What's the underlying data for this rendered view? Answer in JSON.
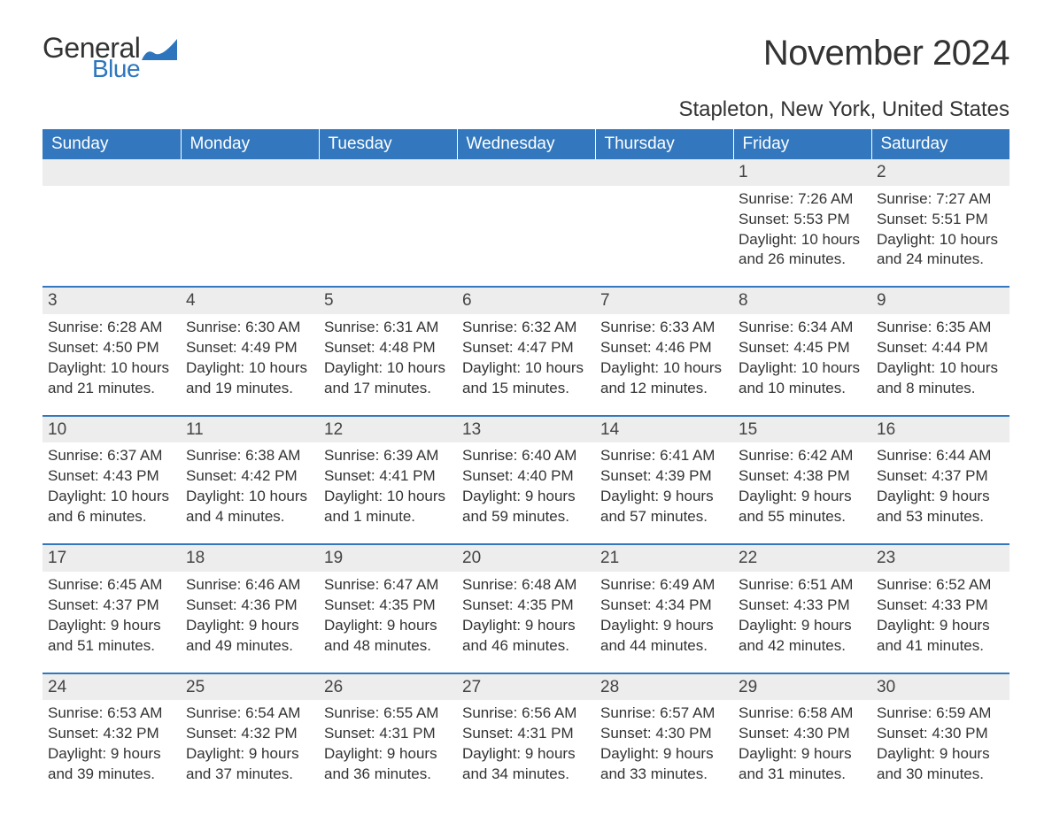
{
  "logo": {
    "word1": "General",
    "word2": "Blue",
    "color_blue": "#2d76bd",
    "color_dark": "#333333"
  },
  "title": "November 2024",
  "location": "Stapleton, New York, United States",
  "header_bg": "#3378be",
  "header_text_color": "#ffffff",
  "daynum_bg": "#ededed",
  "daynum_border": "#3378be",
  "text_color": "#333333",
  "font_family": "Arial, Helvetica, sans-serif",
  "columns": [
    "Sunday",
    "Monday",
    "Tuesday",
    "Wednesday",
    "Thursday",
    "Friday",
    "Saturday"
  ],
  "weeks": [
    [
      null,
      null,
      null,
      null,
      null,
      {
        "n": "1",
        "sunrise": "Sunrise: 7:26 AM",
        "sunset": "Sunset: 5:53 PM",
        "day1": "Daylight: 10 hours",
        "day2": "and 26 minutes."
      },
      {
        "n": "2",
        "sunrise": "Sunrise: 7:27 AM",
        "sunset": "Sunset: 5:51 PM",
        "day1": "Daylight: 10 hours",
        "day2": "and 24 minutes."
      }
    ],
    [
      {
        "n": "3",
        "sunrise": "Sunrise: 6:28 AM",
        "sunset": "Sunset: 4:50 PM",
        "day1": "Daylight: 10 hours",
        "day2": "and 21 minutes."
      },
      {
        "n": "4",
        "sunrise": "Sunrise: 6:30 AM",
        "sunset": "Sunset: 4:49 PM",
        "day1": "Daylight: 10 hours",
        "day2": "and 19 minutes."
      },
      {
        "n": "5",
        "sunrise": "Sunrise: 6:31 AM",
        "sunset": "Sunset: 4:48 PM",
        "day1": "Daylight: 10 hours",
        "day2": "and 17 minutes."
      },
      {
        "n": "6",
        "sunrise": "Sunrise: 6:32 AM",
        "sunset": "Sunset: 4:47 PM",
        "day1": "Daylight: 10 hours",
        "day2": "and 15 minutes."
      },
      {
        "n": "7",
        "sunrise": "Sunrise: 6:33 AM",
        "sunset": "Sunset: 4:46 PM",
        "day1": "Daylight: 10 hours",
        "day2": "and 12 minutes."
      },
      {
        "n": "8",
        "sunrise": "Sunrise: 6:34 AM",
        "sunset": "Sunset: 4:45 PM",
        "day1": "Daylight: 10 hours",
        "day2": "and 10 minutes."
      },
      {
        "n": "9",
        "sunrise": "Sunrise: 6:35 AM",
        "sunset": "Sunset: 4:44 PM",
        "day1": "Daylight: 10 hours",
        "day2": "and 8 minutes."
      }
    ],
    [
      {
        "n": "10",
        "sunrise": "Sunrise: 6:37 AM",
        "sunset": "Sunset: 4:43 PM",
        "day1": "Daylight: 10 hours",
        "day2": "and 6 minutes."
      },
      {
        "n": "11",
        "sunrise": "Sunrise: 6:38 AM",
        "sunset": "Sunset: 4:42 PM",
        "day1": "Daylight: 10 hours",
        "day2": "and 4 minutes."
      },
      {
        "n": "12",
        "sunrise": "Sunrise: 6:39 AM",
        "sunset": "Sunset: 4:41 PM",
        "day1": "Daylight: 10 hours",
        "day2": "and 1 minute."
      },
      {
        "n": "13",
        "sunrise": "Sunrise: 6:40 AM",
        "sunset": "Sunset: 4:40 PM",
        "day1": "Daylight: 9 hours",
        "day2": "and 59 minutes."
      },
      {
        "n": "14",
        "sunrise": "Sunrise: 6:41 AM",
        "sunset": "Sunset: 4:39 PM",
        "day1": "Daylight: 9 hours",
        "day2": "and 57 minutes."
      },
      {
        "n": "15",
        "sunrise": "Sunrise: 6:42 AM",
        "sunset": "Sunset: 4:38 PM",
        "day1": "Daylight: 9 hours",
        "day2": "and 55 minutes."
      },
      {
        "n": "16",
        "sunrise": "Sunrise: 6:44 AM",
        "sunset": "Sunset: 4:37 PM",
        "day1": "Daylight: 9 hours",
        "day2": "and 53 minutes."
      }
    ],
    [
      {
        "n": "17",
        "sunrise": "Sunrise: 6:45 AM",
        "sunset": "Sunset: 4:37 PM",
        "day1": "Daylight: 9 hours",
        "day2": "and 51 minutes."
      },
      {
        "n": "18",
        "sunrise": "Sunrise: 6:46 AM",
        "sunset": "Sunset: 4:36 PM",
        "day1": "Daylight: 9 hours",
        "day2": "and 49 minutes."
      },
      {
        "n": "19",
        "sunrise": "Sunrise: 6:47 AM",
        "sunset": "Sunset: 4:35 PM",
        "day1": "Daylight: 9 hours",
        "day2": "and 48 minutes."
      },
      {
        "n": "20",
        "sunrise": "Sunrise: 6:48 AM",
        "sunset": "Sunset: 4:35 PM",
        "day1": "Daylight: 9 hours",
        "day2": "and 46 minutes."
      },
      {
        "n": "21",
        "sunrise": "Sunrise: 6:49 AM",
        "sunset": "Sunset: 4:34 PM",
        "day1": "Daylight: 9 hours",
        "day2": "and 44 minutes."
      },
      {
        "n": "22",
        "sunrise": "Sunrise: 6:51 AM",
        "sunset": "Sunset: 4:33 PM",
        "day1": "Daylight: 9 hours",
        "day2": "and 42 minutes."
      },
      {
        "n": "23",
        "sunrise": "Sunrise: 6:52 AM",
        "sunset": "Sunset: 4:33 PM",
        "day1": "Daylight: 9 hours",
        "day2": "and 41 minutes."
      }
    ],
    [
      {
        "n": "24",
        "sunrise": "Sunrise: 6:53 AM",
        "sunset": "Sunset: 4:32 PM",
        "day1": "Daylight: 9 hours",
        "day2": "and 39 minutes."
      },
      {
        "n": "25",
        "sunrise": "Sunrise: 6:54 AM",
        "sunset": "Sunset: 4:32 PM",
        "day1": "Daylight: 9 hours",
        "day2": "and 37 minutes."
      },
      {
        "n": "26",
        "sunrise": "Sunrise: 6:55 AM",
        "sunset": "Sunset: 4:31 PM",
        "day1": "Daylight: 9 hours",
        "day2": "and 36 minutes."
      },
      {
        "n": "27",
        "sunrise": "Sunrise: 6:56 AM",
        "sunset": "Sunset: 4:31 PM",
        "day1": "Daylight: 9 hours",
        "day2": "and 34 minutes."
      },
      {
        "n": "28",
        "sunrise": "Sunrise: 6:57 AM",
        "sunset": "Sunset: 4:30 PM",
        "day1": "Daylight: 9 hours",
        "day2": "and 33 minutes."
      },
      {
        "n": "29",
        "sunrise": "Sunrise: 6:58 AM",
        "sunset": "Sunset: 4:30 PM",
        "day1": "Daylight: 9 hours",
        "day2": "and 31 minutes."
      },
      {
        "n": "30",
        "sunrise": "Sunrise: 6:59 AM",
        "sunset": "Sunset: 4:30 PM",
        "day1": "Daylight: 9 hours",
        "day2": "and 30 minutes."
      }
    ]
  ]
}
